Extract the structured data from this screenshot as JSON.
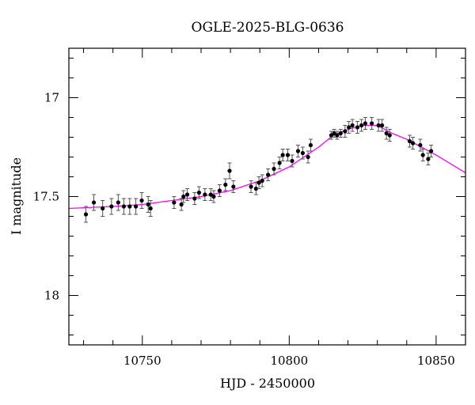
{
  "chart_data": {
    "type": "scatter",
    "title": "OGLE-2025-BLG-0636",
    "xlabel": "HJD - 2450000",
    "ylabel": "I magnitude",
    "xlim": [
      10725,
      10860
    ],
    "ylim": [
      18.25,
      16.75
    ],
    "y_inverted": true,
    "x_ticks": [
      10750,
      10800,
      10850
    ],
    "x_tick_labels": [
      "10750",
      "10800",
      "10850"
    ],
    "y_ticks": [
      17,
      17.5,
      18
    ],
    "y_tick_labels": [
      "17",
      "17.5",
      "18"
    ],
    "grid": false,
    "colors": {
      "points": "#000000",
      "model": "#ff00ff"
    },
    "series": [
      {
        "type": "errorbar",
        "x": [
          10730.8,
          10733.5,
          10736.5,
          10739.5,
          10741.8,
          10743.7,
          10745.7,
          10747.8,
          10749.8,
          10752,
          10752.8,
          10760.8,
          10763.3,
          10764,
          10765.3,
          10767.8,
          10769.3,
          10771.3,
          10773.3,
          10774.3,
          10776.3,
          10778.3,
          10779.7,
          10781,
          10787,
          10788.7,
          10789.7,
          10790.8,
          10792.8,
          10794.8,
          10796.7,
          10797.8,
          10799.5,
          10801,
          10803,
          10804.6,
          10806.4,
          10807.3,
          10814.3,
          10815.3,
          10816.3,
          10817.5,
          10819,
          10820.3,
          10821.5,
          10823.2,
          10824.6,
          10825.9,
          10828.1,
          10830.4,
          10831.6,
          10833.1,
          10834.2,
          10841,
          10842.1,
          10844.6,
          10845.5,
          10847.3,
          10848.3
        ],
        "y": [
          17.59,
          17.53,
          17.56,
          17.55,
          17.53,
          17.55,
          17.55,
          17.55,
          17.52,
          17.54,
          17.56,
          17.53,
          17.54,
          17.5,
          17.49,
          17.51,
          17.48,
          17.49,
          17.49,
          17.5,
          17.47,
          17.44,
          17.37,
          17.45,
          17.45,
          17.46,
          17.43,
          17.42,
          17.39,
          17.36,
          17.33,
          17.29,
          17.29,
          17.32,
          17.27,
          17.28,
          17.3,
          17.24,
          17.19,
          17.18,
          17.19,
          17.18,
          17.17,
          17.15,
          17.14,
          17.15,
          17.14,
          17.13,
          17.13,
          17.14,
          17.14,
          17.18,
          17.19,
          17.22,
          17.23,
          17.24,
          17.29,
          17.31,
          17.27
        ],
        "yerr": [
          0.04,
          0.04,
          0.04,
          0.04,
          0.04,
          0.04,
          0.04,
          0.04,
          0.04,
          0.04,
          0.04,
          0.03,
          0.03,
          0.03,
          0.03,
          0.03,
          0.03,
          0.03,
          0.03,
          0.03,
          0.03,
          0.03,
          0.04,
          0.03,
          0.03,
          0.03,
          0.03,
          0.03,
          0.03,
          0.03,
          0.03,
          0.03,
          0.03,
          0.03,
          0.03,
          0.03,
          0.03,
          0.03,
          0.02,
          0.02,
          0.02,
          0.02,
          0.03,
          0.03,
          0.03,
          0.03,
          0.03,
          0.03,
          0.03,
          0.03,
          0.03,
          0.03,
          0.03,
          0.03,
          0.03,
          0.03,
          0.03,
          0.03,
          0.03
        ]
      },
      {
        "type": "line",
        "x": [
          10725,
          10740,
          10750,
          10760,
          10770,
          10780,
          10790,
          10800,
          10810,
          10815,
          10820,
          10825,
          10830,
          10835,
          10840,
          10850,
          10860
        ],
        "y": [
          17.56,
          17.55,
          17.54,
          17.52,
          17.5,
          17.47,
          17.42,
          17.35,
          17.25,
          17.19,
          17.16,
          17.14,
          17.14,
          17.18,
          17.21,
          17.29,
          17.38
        ]
      }
    ]
  }
}
